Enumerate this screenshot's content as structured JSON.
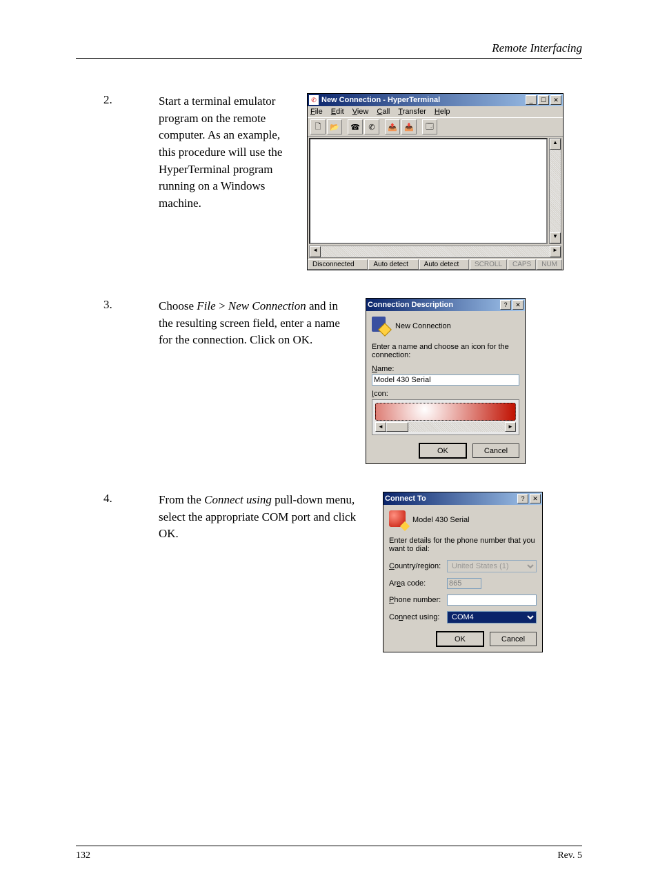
{
  "header": {
    "right": "Remote Interfacing"
  },
  "step2": {
    "num": "2.",
    "text": "Start a terminal emulator program on the remote computer. As an example, this procedure will use the HyperTerminal program running on a Windows machine.",
    "window_title": "New Connection - HyperTerminal",
    "menus": [
      "File",
      "Edit",
      "View",
      "Call",
      "Transfer",
      "Help"
    ],
    "status": {
      "conn": "Disconnected",
      "d1": "Auto detect",
      "d2": "Auto detect",
      "s1": "SCROLL",
      "s2": "CAPS",
      "s3": "NUM"
    }
  },
  "step3": {
    "num": "3.",
    "text_pre": "Choose ",
    "menuitem": "File > New Connection",
    "text_post": " and in the resulting screen field, enter a name for the connection. Click on OK.",
    "dlg_title": "Connection Description",
    "icon_label": "New Connection",
    "instr": "Enter a name and choose an icon for the connection:",
    "name_label": "Name:",
    "name_value": "Model 430 Serial",
    "icon_label2": "Icon:",
    "icon_colors": [
      "#c01000",
      "#2060c0",
      "#30a060",
      "#ffb000",
      "#1040a0",
      "#40b0f0",
      "#d0b060",
      "#e06030"
    ],
    "ok": "OK",
    "cancel": "Cancel"
  },
  "step4": {
    "num": "4.",
    "text_pre": "From the ",
    "menuitem": "Connect using",
    "text_post": " pull-down menu, select the appropriate COM port and click OK.",
    "dlg_title": "Connect To",
    "icon_label": "Model 430 Serial",
    "instr": "Enter details for the phone number that you want to dial:",
    "country_label": "Country/region:",
    "country_value": "United States (1)",
    "area_label": "Area code:",
    "area_value": "865",
    "phone_label": "Phone number:",
    "phone_value": "",
    "using_label": "Connect using:",
    "using_value": "COM4",
    "ok": "OK",
    "cancel": "Cancel"
  },
  "footer": {
    "page": "132",
    "rev": "Rev. 5"
  }
}
